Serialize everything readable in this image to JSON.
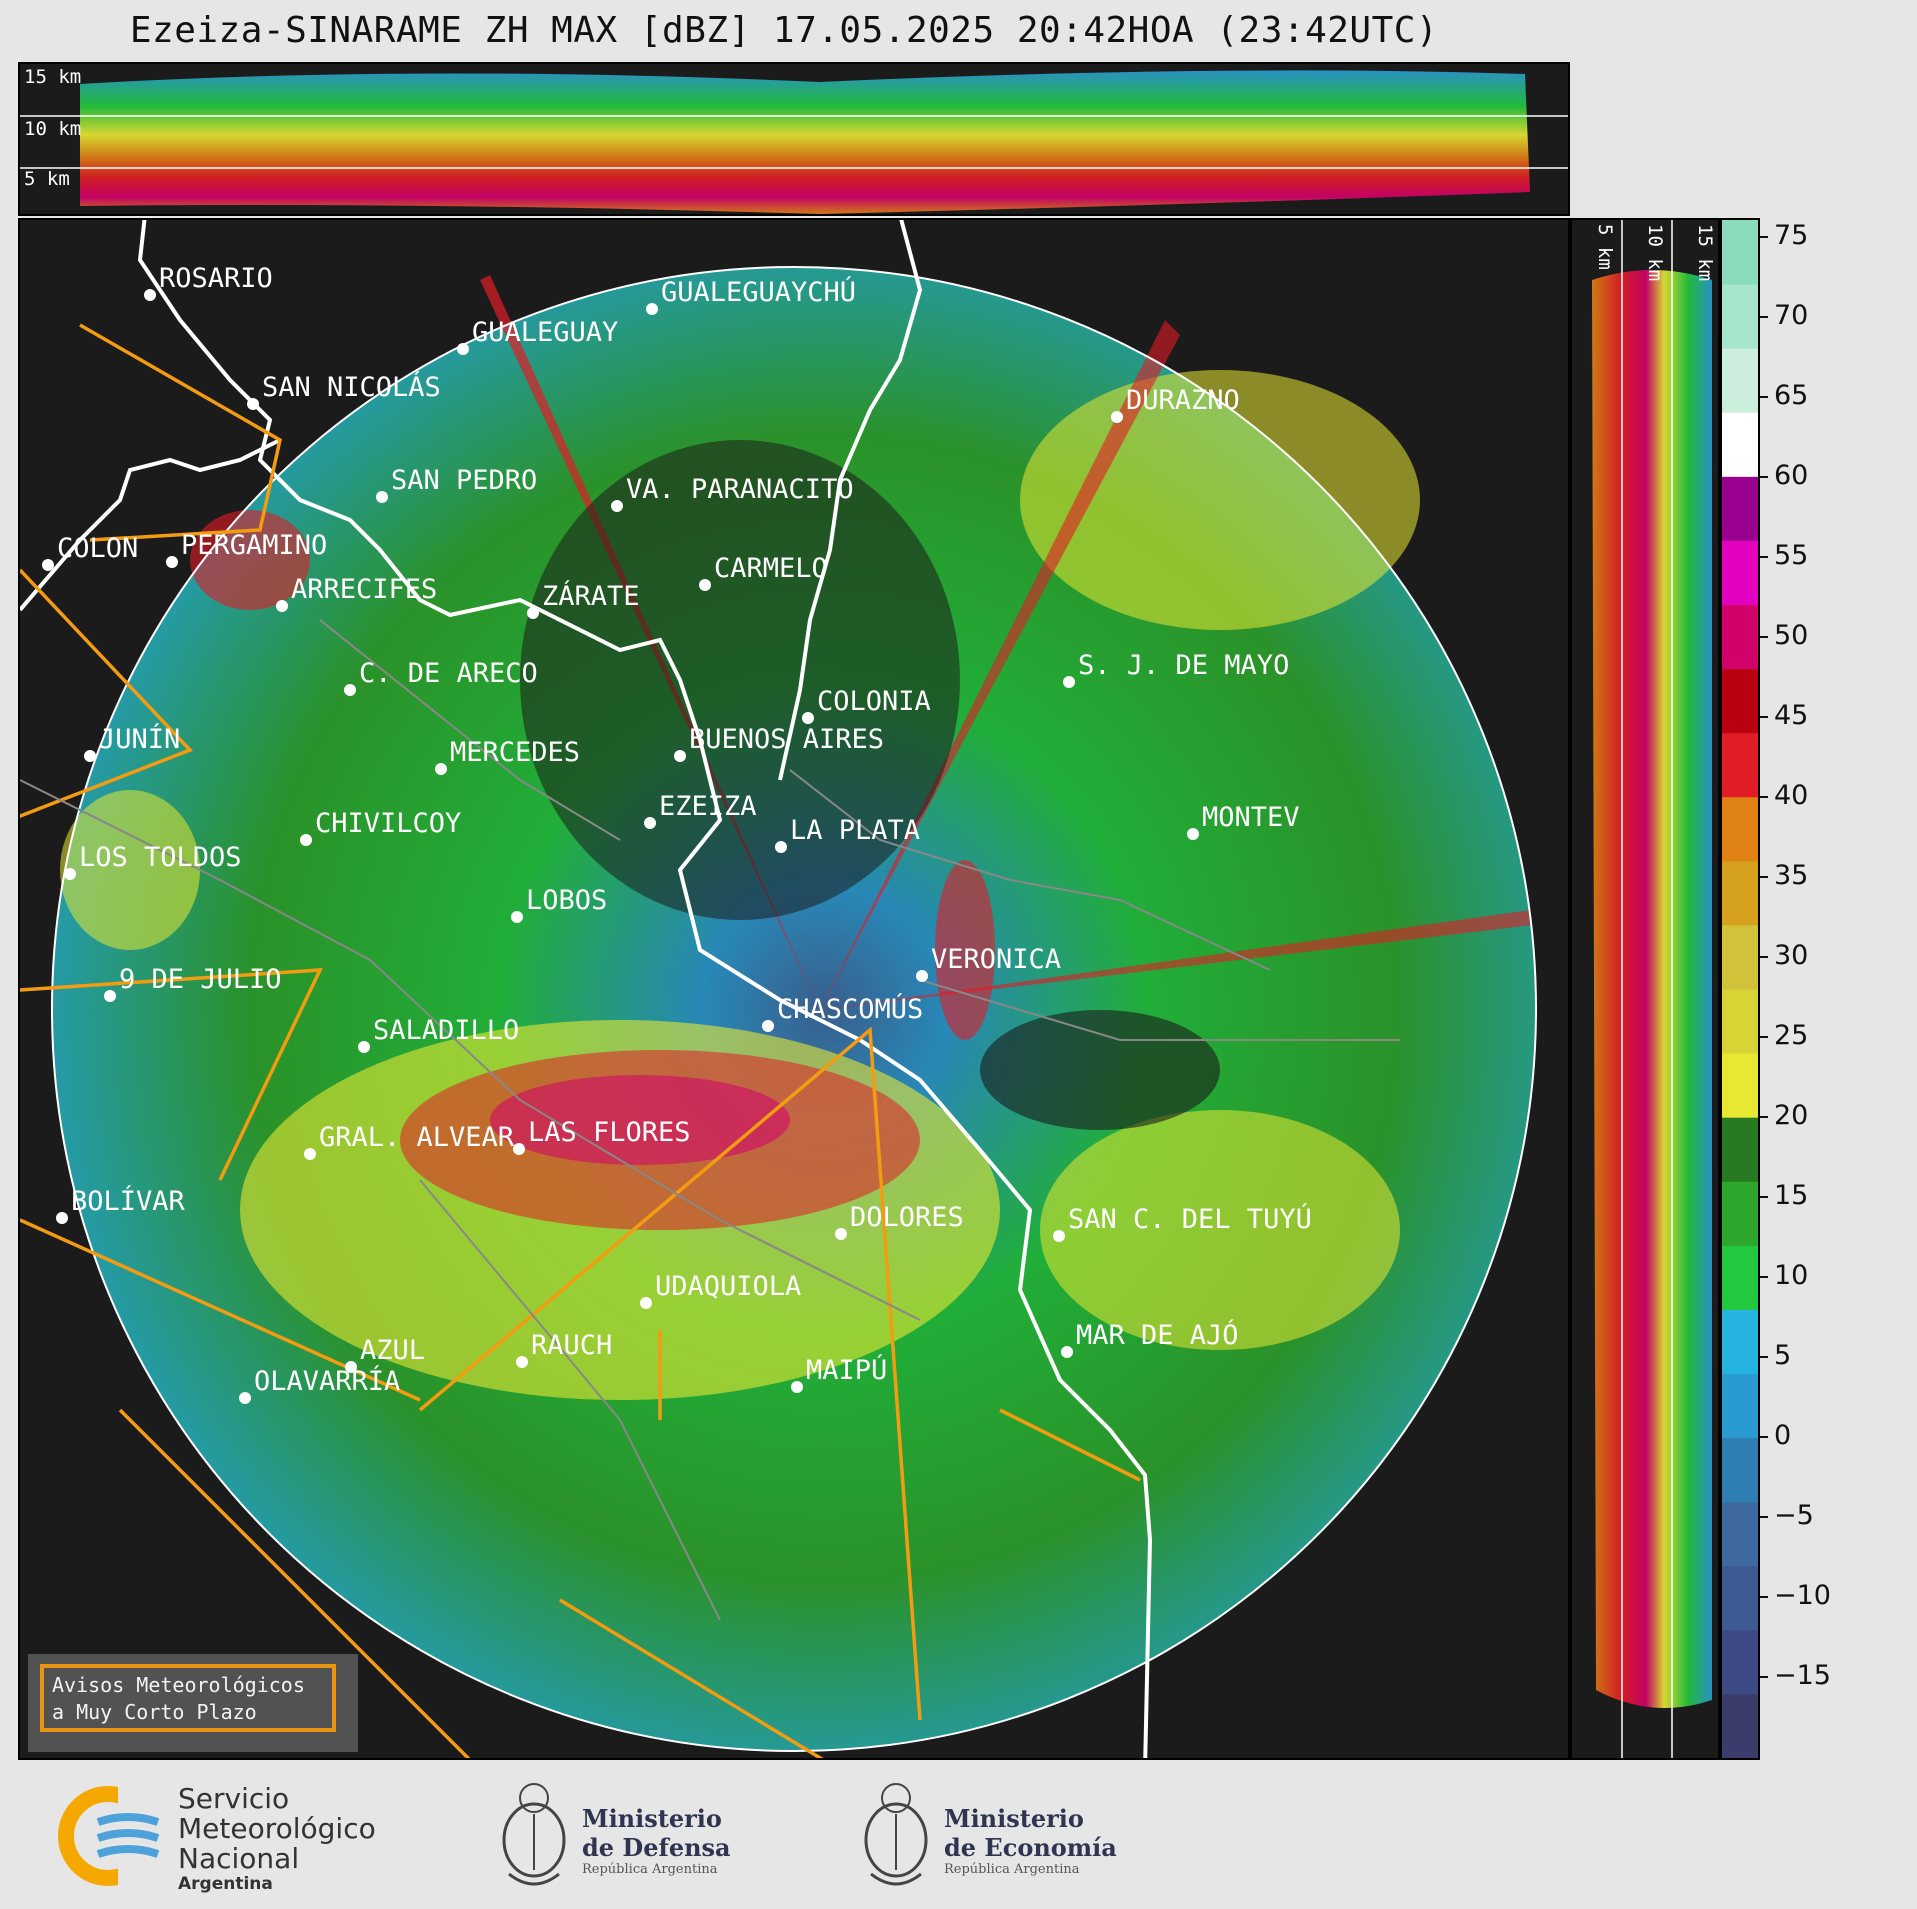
{
  "title": "Ezeiza-SINARAME ZH MAX [dBZ] 17.05.2025 20:42HOA (23:42UTC)",
  "top_panel": {
    "labels": [
      "15 km",
      "10 km",
      "5 km"
    ]
  },
  "right_panel": {
    "labels": [
      "5 km",
      "10 km",
      "15 km"
    ]
  },
  "colorbar": {
    "ticks": [
      "75",
      "70",
      "65",
      "60",
      "55",
      "50",
      "45",
      "40",
      "35",
      "30",
      "25",
      "20",
      "15",
      "10",
      "5",
      "0",
      "−5",
      "−10",
      "−15"
    ],
    "colors": [
      "#3a3d6b",
      "#3d4a86",
      "#3d5a93",
      "#3f6aa0",
      "#2f7fb5",
      "#2a9bd2",
      "#25b3e0",
      "#22c83d",
      "#2da72c",
      "#287a22",
      "#e8e833",
      "#d9d435",
      "#d1c23a",
      "#d6a11d",
      "#e08115",
      "#e11c26",
      "#b80010",
      "#d1006b",
      "#e400c0",
      "#9a0090",
      "#ffffff",
      "#cceedd",
      "#a8e6cc",
      "#8adcbc"
    ]
  },
  "cities": [
    {
      "name": "ROSARIO"
    },
    {
      "name": "GUALEGUAYCHÚ"
    },
    {
      "name": "GUALEGUAY"
    },
    {
      "name": "SAN NICOLÁS"
    },
    {
      "name": "DURAZNO"
    },
    {
      "name": "SAN PEDRO"
    },
    {
      "name": "VA. PARANACITO"
    },
    {
      "name": "COLON"
    },
    {
      "name": "PERGAMINO"
    },
    {
      "name": "CARMELO"
    },
    {
      "name": "ARRECIFES"
    },
    {
      "name": "ZÁRATE"
    },
    {
      "name": "S. J. DE MAYO"
    },
    {
      "name": "C. DE ARECO"
    },
    {
      "name": "COLONIA"
    },
    {
      "name": "JUNÍN"
    },
    {
      "name": "BUENOS AIRES"
    },
    {
      "name": "MERCEDES"
    },
    {
      "name": "MONTEV"
    },
    {
      "name": "EZEIZA"
    },
    {
      "name": "CHIVILCOY"
    },
    {
      "name": "LA PLATA"
    },
    {
      "name": "LOS TOLDOS"
    },
    {
      "name": "LOBOS"
    },
    {
      "name": "VERONICA"
    },
    {
      "name": "9 DE JULIO"
    },
    {
      "name": "CHASCOMÚS"
    },
    {
      "name": "SALADILLO"
    },
    {
      "name": "GRAL. ALVEAR"
    },
    {
      "name": "LAS FLORES"
    },
    {
      "name": "BOLÍVAR"
    },
    {
      "name": "DOLORES"
    },
    {
      "name": "SAN C. DEL TUYÚ"
    },
    {
      "name": "UDAQUIOLA"
    },
    {
      "name": "MAR DE AJÓ"
    },
    {
      "name": "RAUCH"
    },
    {
      "name": "AZUL"
    },
    {
      "name": "OLAVARRÍA"
    },
    {
      "name": "MAIPÚ"
    }
  ],
  "legend": {
    "line1": "Avisos Meteorológicos",
    "line2": "a Muy Corto Plazo"
  },
  "footer": {
    "smn": {
      "line1": "Servicio",
      "line2": "Meteorológico",
      "line3": "Nacional",
      "line4": "Argentina"
    },
    "defensa": {
      "line1": "Ministerio",
      "line2": "de Defensa",
      "line3": "República Argentina"
    },
    "economia": {
      "line1": "Ministerio",
      "line2": "de Economía",
      "line3": "República Argentina"
    }
  }
}
